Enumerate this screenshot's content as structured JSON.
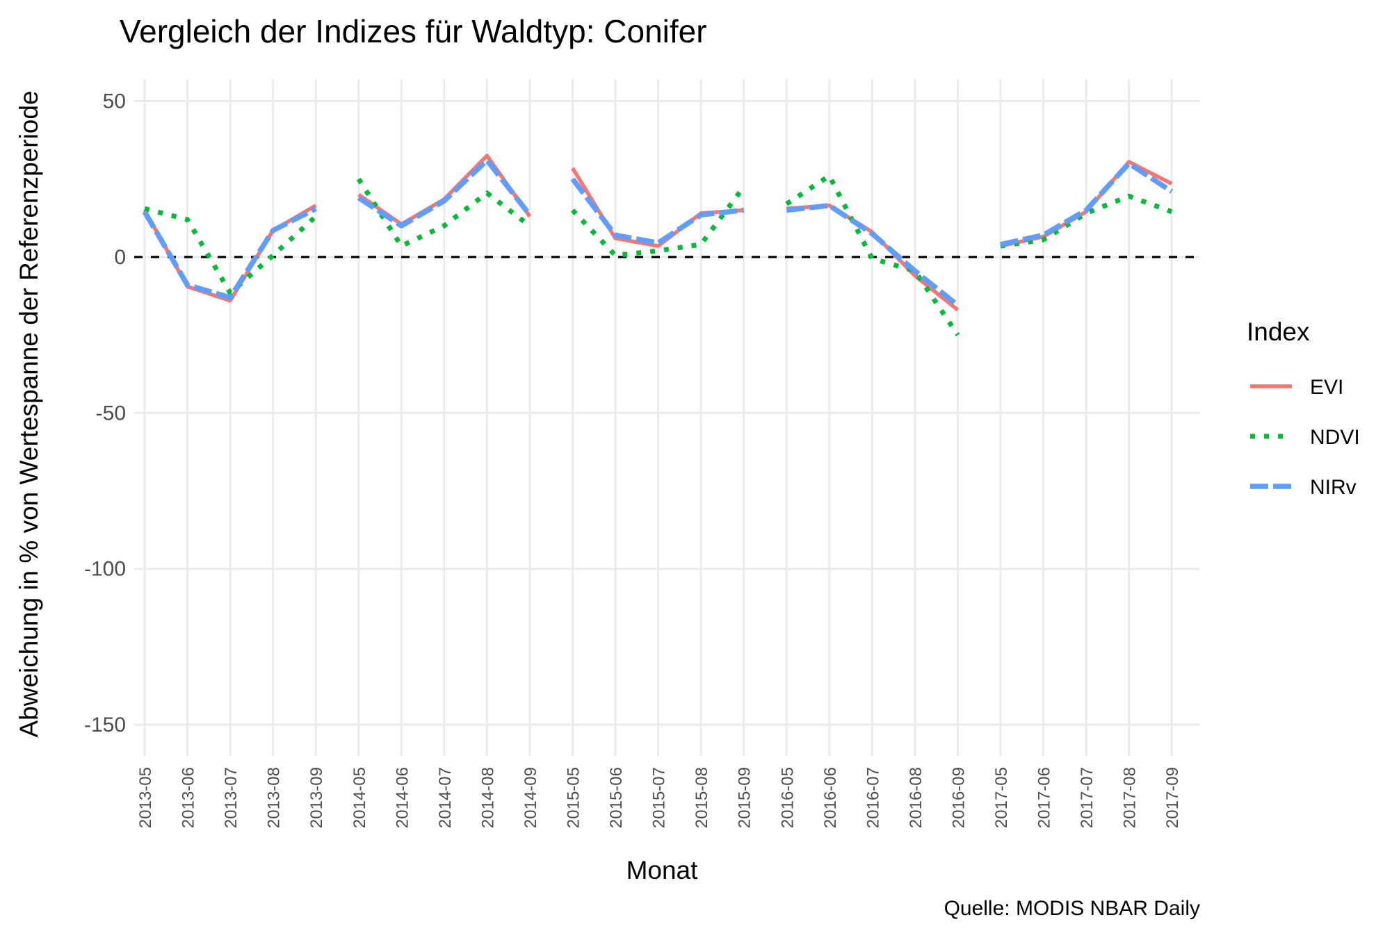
{
  "chart_data": {
    "type": "line",
    "title": "Vergleich der Indizes für Waldtyp: Conifer",
    "xlabel": "Monat",
    "ylabel": "Abweichung in % von Wertespanne der Referenzperiode",
    "caption": "Quelle: MODIS NBAR Daily",
    "ylim": [
      -160,
      57
    ],
    "yticks": [
      50,
      0,
      -50,
      -100,
      -150
    ],
    "ytick_labels": [
      "50",
      "0",
      "-50",
      "-100",
      "-150"
    ],
    "reference_line": 0,
    "categories": [
      "2013-05",
      "2013-06",
      "2013-07",
      "2013-08",
      "2013-09",
      "2014-05",
      "2014-06",
      "2014-07",
      "2014-08",
      "2014-09",
      "2015-05",
      "2015-06",
      "2015-07",
      "2015-08",
      "2015-09",
      "2016-05",
      "2016-06",
      "2016-07",
      "2016-08",
      "2016-09",
      "2017-05",
      "2017-06",
      "2017-07",
      "2017-08",
      "2017-09"
    ],
    "legend": {
      "title": "Index",
      "position": "right"
    },
    "series": [
      {
        "name": "EVI",
        "color": "#F8766D",
        "dash": "solid",
        "values": [
          15,
          -9.5,
          -14,
          8.5,
          16.5,
          20,
          10.5,
          18.5,
          32.5,
          13,
          28.5,
          6,
          3.5,
          14,
          15,
          15.5,
          16.5,
          8,
          -6,
          -17,
          3.5,
          6.5,
          14.5,
          30.5,
          23.5
        ]
      },
      {
        "name": "NDVI",
        "color": "#00BA38",
        "dash": "dotted",
        "values": [
          15.5,
          12,
          -11.5,
          0.5,
          13,
          25,
          3.5,
          10,
          20.5,
          10,
          15,
          0.5,
          2,
          4,
          22.5,
          17,
          26,
          -0.5,
          -4.5,
          -25,
          3.5,
          5.5,
          14,
          19.5,
          14.5
        ]
      },
      {
        "name": "NIRv",
        "color": "#619CFF",
        "dash": "longdash",
        "values": [
          14.5,
          -9,
          -13,
          8.5,
          15.5,
          19,
          10,
          18,
          31,
          13.5,
          25,
          7,
          4.5,
          13.5,
          15,
          15,
          16.5,
          7.5,
          -4.5,
          -15.5,
          4,
          7,
          15,
          30,
          21
        ]
      }
    ]
  }
}
